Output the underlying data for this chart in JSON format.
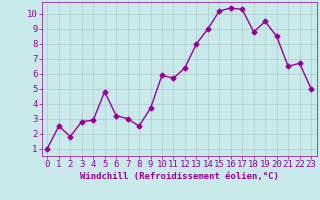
{
  "x": [
    0,
    1,
    2,
    3,
    4,
    5,
    6,
    7,
    8,
    9,
    10,
    11,
    12,
    13,
    14,
    15,
    16,
    17,
    18,
    19,
    20,
    21,
    22,
    23
  ],
  "y": [
    1.0,
    2.5,
    1.8,
    2.8,
    2.9,
    4.8,
    3.2,
    3.0,
    2.5,
    3.7,
    5.9,
    5.7,
    6.4,
    8.0,
    9.0,
    10.2,
    10.4,
    10.3,
    8.8,
    9.5,
    8.5,
    6.5,
    6.7,
    5.0
  ],
  "line_color": "#990099",
  "marker": "D",
  "markersize": 2.5,
  "linewidth": 1.0,
  "xlabel": "Windchill (Refroidissement éolien,°C)",
  "xlabel_fontsize": 6.5,
  "xlim": [
    -0.5,
    23.5
  ],
  "ylim": [
    0.5,
    10.8
  ],
  "yticks": [
    1,
    2,
    3,
    4,
    5,
    6,
    7,
    8,
    9,
    10
  ],
  "xticks": [
    0,
    1,
    2,
    3,
    4,
    5,
    6,
    7,
    8,
    9,
    10,
    11,
    12,
    13,
    14,
    15,
    16,
    17,
    18,
    19,
    20,
    21,
    22,
    23
  ],
  "background_color": "#c8eaea",
  "grid_color": "#b0c8c8",
  "tick_color": "#990099",
  "label_color": "#990099",
  "tick_fontsize": 6.5
}
